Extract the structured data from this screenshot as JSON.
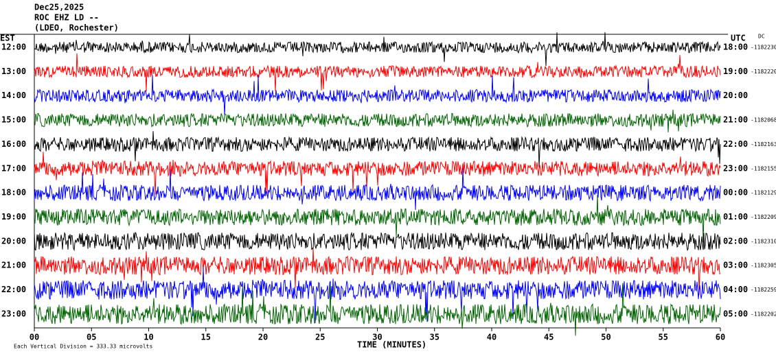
{
  "header": {
    "date": "Dec25,2025",
    "station": "ROC EHZ LD --",
    "network": "(LDEO, Rochester)"
  },
  "left_axis": {
    "title": "EST",
    "labels": [
      "12:00",
      "13:00",
      "14:00",
      "15:00",
      "16:00",
      "17:00",
      "18:00",
      "19:00",
      "20:00",
      "21:00",
      "22:00",
      "23:00"
    ]
  },
  "right_axis": {
    "title": "UTC",
    "dc_title": "DC",
    "labels": [
      "18:00",
      "19:00",
      "20:00",
      "21:00",
      "22:00",
      "23:00",
      "00:00",
      "01:00",
      "02:00",
      "03:00",
      "04:00",
      "05:00"
    ],
    "offsets": [
      -1182230,
      -1182220,
      null,
      -1182068,
      -1182163,
      -1182155,
      -1182129,
      -1182209,
      -1182310,
      -1182305,
      -1182259,
      -1182202
    ]
  },
  "x_axis": {
    "title": "TIME (MINUTES)",
    "xlim": [
      0,
      60
    ],
    "ticks": [
      {
        "value": 0,
        "label": "00"
      },
      {
        "value": 5,
        "label": "05"
      },
      10,
      15,
      20,
      25,
      30,
      35,
      40,
      45,
      50,
      55,
      60
    ]
  },
  "footer": "Each Vertical Division =  333.33 microvolts",
  "trace_colors": [
    "#000000",
    "#ff0000",
    "#0000ff",
    "#006400"
  ]
}
